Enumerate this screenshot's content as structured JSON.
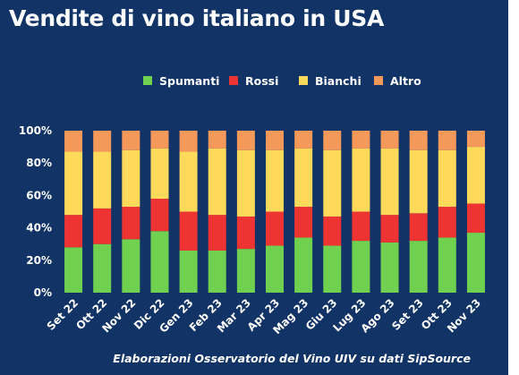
{
  "title": "Vendite di vino italiano in USA",
  "source": "Elaborazioni Osservatorio del Vino UIV su dati SipSource",
  "chart_data": {
    "type": "bar",
    "stacked": true,
    "percent": true,
    "categories": [
      "Set 22",
      "Ott 22",
      "Nov 22",
      "Dic 22",
      "Gen 23",
      "Feb 23",
      "Mar 23",
      "Apr 23",
      "Mag 23",
      "Giu 23",
      "Lug 23",
      "Ago 23",
      "Set 23",
      "Ott 23",
      "Nov 23"
    ],
    "series": [
      {
        "name": "Spumanti",
        "color": "#6fd14f",
        "values": [
          28,
          30,
          33,
          38,
          26,
          26,
          27,
          29,
          34,
          29,
          32,
          31,
          32,
          34,
          37
        ]
      },
      {
        "name": "Rossi",
        "color": "#ee3333",
        "values": [
          20,
          22,
          20,
          20,
          24,
          22,
          20,
          21,
          19,
          18,
          18,
          17,
          17,
          19,
          18
        ]
      },
      {
        "name": "Bianchi",
        "color": "#ffd95a",
        "values": [
          39,
          35,
          35,
          31,
          37,
          41,
          41,
          38,
          36,
          41,
          39,
          41,
          39,
          35,
          35
        ]
      },
      {
        "name": "Altro",
        "color": "#f5995a",
        "values": [
          13,
          13,
          12,
          11,
          13,
          11,
          12,
          12,
          11,
          12,
          11,
          11,
          12,
          12,
          10
        ]
      }
    ],
    "ylim": [
      0,
      100
    ],
    "yticks": [
      "0%",
      "20%",
      "40%",
      "60%",
      "80%",
      "100%"
    ],
    "legend_position": "top"
  }
}
